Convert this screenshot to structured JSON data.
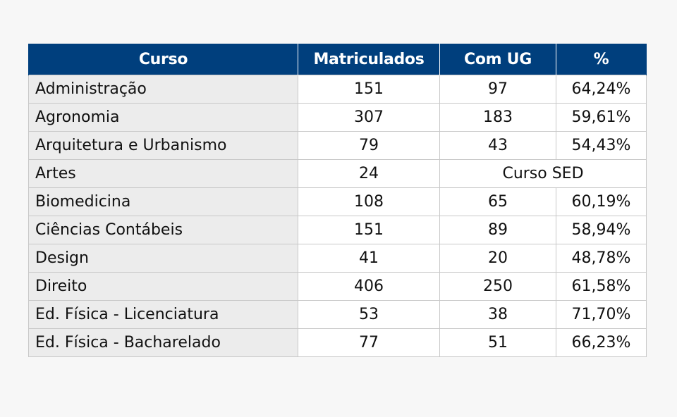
{
  "table": {
    "headers": [
      "Curso",
      "Matriculados",
      "Com UG",
      "%"
    ],
    "rows": [
      {
        "curso": "Administração",
        "matriculados": "151",
        "com_ug": "97",
        "pct": "64,24%"
      },
      {
        "curso": "Agronomia",
        "matriculados": "307",
        "com_ug": "183",
        "pct": "59,61%"
      },
      {
        "curso": "Arquitetura e Urbanismo",
        "matriculados": "79",
        "com_ug": "43",
        "pct": "54,43%"
      },
      {
        "curso": "Artes",
        "matriculados": "24",
        "merged_note": "Curso SED"
      },
      {
        "curso": "Biomedicina",
        "matriculados": "108",
        "com_ug": "65",
        "pct": "60,19%"
      },
      {
        "curso": "Ciências Contábeis",
        "matriculados": "151",
        "com_ug": "89",
        "pct": "58,94%"
      },
      {
        "curso": "Design",
        "matriculados": "41",
        "com_ug": "20",
        "pct": "48,78%"
      },
      {
        "curso": "Direito",
        "matriculados": "406",
        "com_ug": "250",
        "pct": "61,58%"
      },
      {
        "curso": "Ed. Física - Licenciatura",
        "matriculados": "53",
        "com_ug": "38",
        "pct": "71,70%"
      },
      {
        "curso": "Ed. Física - Bacharelado",
        "matriculados": "77",
        "com_ug": "51",
        "pct": "66,23%"
      }
    ]
  }
}
